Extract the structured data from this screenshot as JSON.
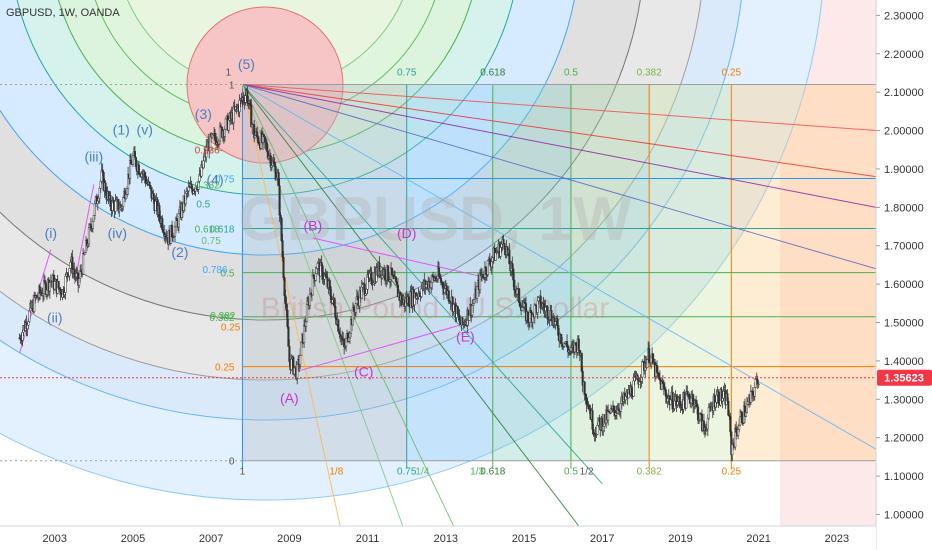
{
  "header": {
    "symbol_line": "GBPUSD, 1W, OANDA"
  },
  "watermark": {
    "symbol": "GBPUSD, 1W",
    "name": "British Pound / U.S. Dollar"
  },
  "colors": {
    "background": "#ffffff",
    "candle": "#333333",
    "price_badge": "#f23645",
    "wave_blue": "#4a7fc1",
    "wave_magenta": "#cc33cc",
    "grid_red": "#e53935",
    "grid_orange": "#f57c00",
    "grid_green": "#4caf50",
    "grid_teal": "#26a69a",
    "grid_blue": "#2196f3",
    "grid_purple": "#7b1fa2",
    "grid_gray": "#9e9e9e"
  },
  "chart_data": {
    "type": "candlestick",
    "title": "GBPUSD, 1W, OANDA",
    "y_axis": {
      "ticks": [
        1.0,
        1.1,
        1.2,
        1.3,
        1.4,
        1.5,
        1.6,
        1.7,
        1.8,
        1.9,
        2.0,
        2.1,
        2.2,
        2.3
      ],
      "tick_labels": [
        "1.00000",
        "1.10000",
        "1.20000",
        "1.30000",
        "1.40000",
        "1.50000",
        "1.60000",
        "1.70000",
        "1.80000",
        "1.90000",
        "2.00000",
        "2.10000",
        "2.20000",
        "2.30000"
      ],
      "range": [
        0.97,
        2.34
      ]
    },
    "x_axis": {
      "ticks": [
        2003,
        2005,
        2007,
        2009,
        2011,
        2013,
        2015,
        2017,
        2019,
        2021,
        2023
      ],
      "tick_labels": [
        "2003",
        "2005",
        "2007",
        "2009",
        "2011",
        "2013",
        "2015",
        "2017",
        "2019",
        "2021",
        "2023"
      ],
      "range": [
        2001.6,
        2024.0
      ]
    },
    "current_price": {
      "value": 1.35623,
      "label": "1.35623"
    },
    "price_path": [
      [
        2002.1,
        1.46
      ],
      [
        2002.5,
        1.56
      ],
      [
        2002.9,
        1.61
      ],
      [
        2003.2,
        1.58
      ],
      [
        2003.4,
        1.66
      ],
      [
        2003.6,
        1.6
      ],
      [
        2003.9,
        1.74
      ],
      [
        2004.2,
        1.88
      ],
      [
        2004.4,
        1.81
      ],
      [
        2004.7,
        1.8
      ],
      [
        2004.9,
        1.89
      ],
      [
        2005.0,
        1.93
      ],
      [
        2005.3,
        1.88
      ],
      [
        2005.6,
        1.8
      ],
      [
        2005.9,
        1.72
      ],
      [
        2006.1,
        1.75
      ],
      [
        2006.4,
        1.84
      ],
      [
        2006.7,
        1.87
      ],
      [
        2006.9,
        1.96
      ],
      [
        2007.2,
        1.99
      ],
      [
        2007.5,
        2.03
      ],
      [
        2007.9,
        2.1
      ],
      [
        2008.1,
        1.99
      ],
      [
        2008.4,
        1.96
      ],
      [
        2008.7,
        1.88
      ],
      [
        2008.9,
        1.55
      ],
      [
        2009.0,
        1.4
      ],
      [
        2009.2,
        1.37
      ],
      [
        2009.5,
        1.56
      ],
      [
        2009.7,
        1.65
      ],
      [
        2009.9,
        1.62
      ],
      [
        2010.1,
        1.56
      ],
      [
        2010.4,
        1.43
      ],
      [
        2010.7,
        1.55
      ],
      [
        2010.9,
        1.59
      ],
      [
        2011.3,
        1.64
      ],
      [
        2011.6,
        1.62
      ],
      [
        2011.9,
        1.55
      ],
      [
        2012.2,
        1.57
      ],
      [
        2012.5,
        1.6
      ],
      [
        2012.8,
        1.62
      ],
      [
        2013.1,
        1.57
      ],
      [
        2013.4,
        1.49
      ],
      [
        2013.7,
        1.55
      ],
      [
        2013.9,
        1.62
      ],
      [
        2014.2,
        1.67
      ],
      [
        2014.5,
        1.71
      ],
      [
        2014.8,
        1.58
      ],
      [
        2015.1,
        1.51
      ],
      [
        2015.4,
        1.55
      ],
      [
        2015.7,
        1.52
      ],
      [
        2015.9,
        1.47
      ],
      [
        2016.2,
        1.42
      ],
      [
        2016.4,
        1.45
      ],
      [
        2016.5,
        1.35
      ],
      [
        2016.8,
        1.22
      ],
      [
        2017.0,
        1.24
      ],
      [
        2017.3,
        1.27
      ],
      [
        2017.6,
        1.3
      ],
      [
        2017.9,
        1.35
      ],
      [
        2018.2,
        1.42
      ],
      [
        2018.4,
        1.36
      ],
      [
        2018.7,
        1.3
      ],
      [
        2019.0,
        1.29
      ],
      [
        2019.3,
        1.31
      ],
      [
        2019.6,
        1.22
      ],
      [
        2019.9,
        1.31
      ],
      [
        2020.2,
        1.3
      ],
      [
        2020.3,
        1.17
      ],
      [
        2020.5,
        1.24
      ],
      [
        2020.8,
        1.3
      ],
      [
        2021.0,
        1.36
      ]
    ],
    "wave_labels_blue": [
      {
        "text": "(i)",
        "x": 2002.9,
        "y": 1.72
      },
      {
        "text": "(ii)",
        "x": 2003.0,
        "y": 1.5
      },
      {
        "text": "(iii)",
        "x": 2004.0,
        "y": 1.92
      },
      {
        "text": "(iv)",
        "x": 2004.6,
        "y": 1.72
      },
      {
        "text": "(1)",
        "x": 2004.7,
        "y": 1.99
      },
      {
        "text": "(v)",
        "x": 2005.3,
        "y": 1.99
      },
      {
        "text": "(2)",
        "x": 2006.2,
        "y": 1.67
      },
      {
        "text": "(3)",
        "x": 2006.8,
        "y": 2.03
      },
      {
        "text": "(4)",
        "x": 2007.1,
        "y": 1.86
      },
      {
        "text": "(5)",
        "x": 2007.9,
        "y": 2.16
      }
    ],
    "wave_labels_magenta": [
      {
        "text": "(A)",
        "x": 2009.0,
        "y": 1.29
      },
      {
        "text": "(B)",
        "x": 2009.6,
        "y": 1.74
      },
      {
        "text": "(C)",
        "x": 2010.9,
        "y": 1.36
      },
      {
        "text": "(D)",
        "x": 2012.0,
        "y": 1.72
      },
      {
        "text": "(E)",
        "x": 2013.5,
        "y": 1.45
      }
    ],
    "fib_time_levels": [
      {
        "label": "1",
        "x": 2007.8
      },
      {
        "label": "0.75",
        "x": 2012.0
      },
      {
        "label": "0.618",
        "x": 2014.2
      },
      {
        "label": "0.5",
        "x": 2016.2
      },
      {
        "label": "0.382",
        "x": 2018.2
      },
      {
        "label": "0.25",
        "x": 2020.3
      }
    ],
    "fib_price_levels": [
      {
        "label": "1",
        "y": 2.12
      },
      {
        "label": "0.75",
        "y": 1.875
      },
      {
        "label": "0.618",
        "y": 1.745
      },
      {
        "label": "0.5",
        "y": 1.63
      },
      {
        "label": "0.382",
        "y": 1.515
      },
      {
        "label": "0.25",
        "y": 1.385
      },
      {
        "label": "0",
        "y": 1.14
      }
    ],
    "fan_labels_bottom": [
      "1/8",
      "1/4",
      "1/3",
      "1/2"
    ],
    "circle_level_labels": [
      "0.236",
      "0.382",
      "0.5",
      "0.618",
      "0.75",
      "0.786",
      "0.382",
      "0.25"
    ],
    "circle_level_label_xs": [
      2007.0,
      2007.0,
      2006.9,
      2007.0,
      2007.1,
      2007.2,
      2007.4,
      2007.6
    ]
  }
}
